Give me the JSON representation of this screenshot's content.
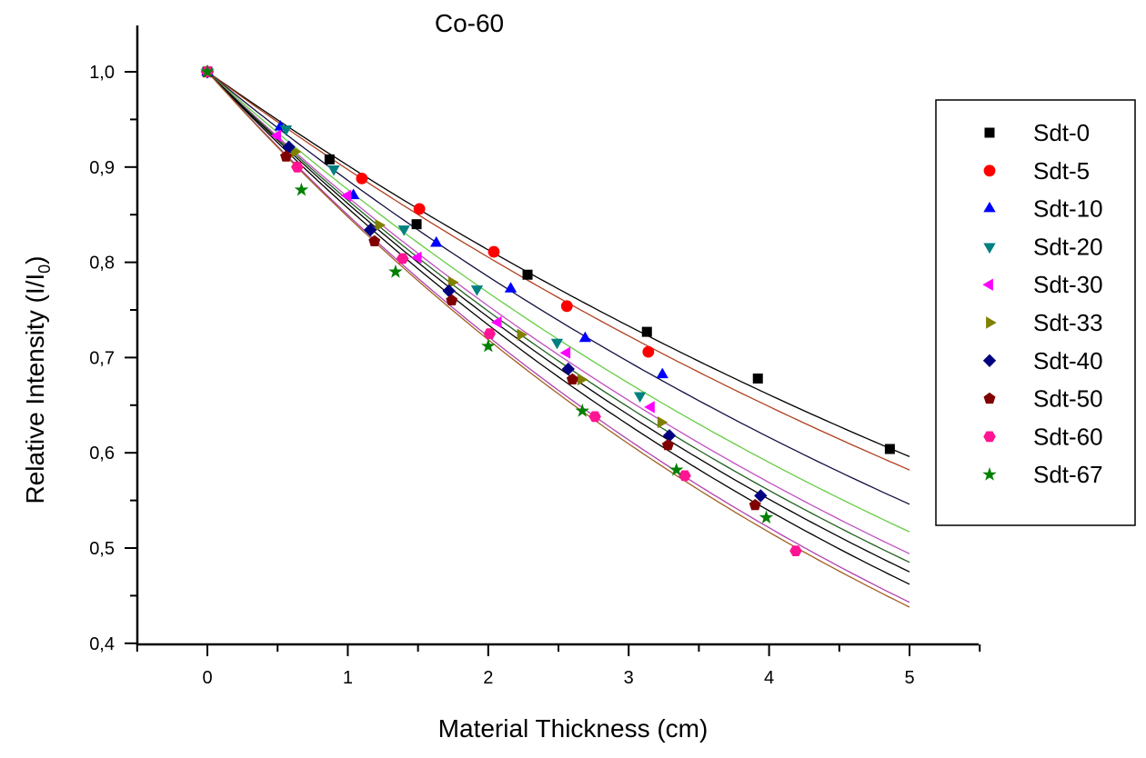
{
  "chart_data": {
    "type": "scatter",
    "title": "Co-60",
    "xlabel": "Material Thickness (cm)",
    "ylabel": "Relative Intensity (I/I0)",
    "ylabel_main": "Relative Intensity (I/I",
    "ylabel_sub": "0",
    "ylabel_end": ")",
    "xlim": [
      -0.5,
      5.5
    ],
    "ylim": [
      0.4,
      1.05
    ],
    "xticks": [
      0,
      1,
      2,
      3,
      4,
      5
    ],
    "xtick_labels": [
      "0",
      "1",
      "2",
      "3",
      "4",
      "5"
    ],
    "yticks": [
      0.4,
      0.5,
      0.6,
      0.7,
      0.8,
      0.9,
      1.0
    ],
    "ytick_labels": [
      "0,4",
      "0,5",
      "0,6",
      "0,7",
      "0,8",
      "0,9",
      "1,0"
    ],
    "grid": false,
    "legend_position": "right",
    "fit_range": [
      0,
      5
    ],
    "series": [
      {
        "name": "Sdt-0",
        "marker": "square",
        "color": "#000000",
        "fit_color": "#000000",
        "fit_end": 0.596,
        "points": [
          [
            0,
            1.0
          ],
          [
            0.87,
            0.908
          ],
          [
            1.49,
            0.84
          ],
          [
            2.28,
            0.787
          ],
          [
            3.13,
            0.727
          ],
          [
            3.92,
            0.678
          ],
          [
            4.86,
            0.604
          ]
        ]
      },
      {
        "name": "Sdt-5",
        "marker": "circle",
        "color": "#ff0000",
        "fit_color": "#b04020",
        "fit_end": 0.582,
        "points": [
          [
            0,
            1.0
          ],
          [
            1.1,
            0.888
          ],
          [
            1.51,
            0.856
          ],
          [
            2.04,
            0.811
          ],
          [
            2.56,
            0.754
          ],
          [
            3.14,
            0.706
          ]
        ]
      },
      {
        "name": "Sdt-10",
        "marker": "triangle-up",
        "color": "#0000ff",
        "fit_color": "#101040",
        "fit_end": 0.546,
        "points": [
          [
            0,
            1.0
          ],
          [
            0.52,
            0.942
          ],
          [
            1.04,
            0.87
          ],
          [
            1.63,
            0.82
          ],
          [
            2.16,
            0.772
          ],
          [
            2.69,
            0.72
          ],
          [
            3.24,
            0.682
          ]
        ]
      },
      {
        "name": "Sdt-20",
        "marker": "triangle-down",
        "color": "#008080",
        "fit_color": "#66cc44",
        "fit_end": 0.517,
        "points": [
          [
            0,
            1.0
          ],
          [
            0.56,
            0.94
          ],
          [
            0.9,
            0.898
          ],
          [
            1.4,
            0.835
          ],
          [
            1.92,
            0.772
          ],
          [
            2.49,
            0.716
          ],
          [
            3.08,
            0.66
          ]
        ]
      },
      {
        "name": "Sdt-30",
        "marker": "triangle-left",
        "color": "#ff00ff",
        "fit_color": "#c050c0",
        "fit_end": 0.494,
        "points": [
          [
            0,
            1.0
          ],
          [
            0.5,
            0.933
          ],
          [
            1.0,
            0.87
          ],
          [
            1.5,
            0.805
          ],
          [
            2.07,
            0.737
          ],
          [
            2.56,
            0.705
          ],
          [
            3.16,
            0.648
          ]
        ]
      },
      {
        "name": "Sdt-33",
        "marker": "triangle-right",
        "color": "#808000",
        "fit_color": "#206020",
        "fit_end": 0.485,
        "points": [
          [
            0,
            1.0
          ],
          [
            0.62,
            0.916
          ],
          [
            1.22,
            0.839
          ],
          [
            1.74,
            0.779
          ],
          [
            2.23,
            0.724
          ],
          [
            2.66,
            0.677
          ],
          [
            3.23,
            0.632
          ]
        ]
      },
      {
        "name": "Sdt-40",
        "marker": "diamond",
        "color": "#000080",
        "fit_color": "#000000",
        "fit_end": 0.475,
        "points": [
          [
            0,
            1.0
          ],
          [
            0.58,
            0.921
          ],
          [
            1.16,
            0.834
          ],
          [
            1.72,
            0.77
          ],
          [
            2.57,
            0.688
          ],
          [
            3.29,
            0.618
          ],
          [
            3.94,
            0.555
          ]
        ]
      },
      {
        "name": "Sdt-50",
        "marker": "pentagon",
        "color": "#800000",
        "fit_color": "#000000",
        "fit_end": 0.462,
        "points": [
          [
            0,
            1.0
          ],
          [
            0.56,
            0.911
          ],
          [
            1.19,
            0.822
          ],
          [
            1.74,
            0.76
          ],
          [
            2.6,
            0.677
          ],
          [
            3.28,
            0.608
          ],
          [
            3.9,
            0.545
          ]
        ]
      },
      {
        "name": "Sdt-60",
        "marker": "hexagon",
        "color": "#ff1493",
        "fit_color": "#b040b0",
        "fit_end": 0.443,
        "points": [
          [
            0,
            1.0
          ],
          [
            0.64,
            0.9
          ],
          [
            1.39,
            0.804
          ],
          [
            2.01,
            0.725
          ],
          [
            2.76,
            0.638
          ],
          [
            3.4,
            0.576
          ],
          [
            4.19,
            0.497
          ]
        ]
      },
      {
        "name": "Sdt-67",
        "marker": "star",
        "color": "#008000",
        "fit_color": "#a06020",
        "fit_end": 0.438,
        "points": [
          [
            0,
            1.0
          ],
          [
            0.67,
            0.876
          ],
          [
            1.34,
            0.79
          ],
          [
            2.0,
            0.712
          ],
          [
            2.67,
            0.644
          ],
          [
            3.34,
            0.582
          ],
          [
            3.98,
            0.532
          ]
        ]
      }
    ]
  }
}
